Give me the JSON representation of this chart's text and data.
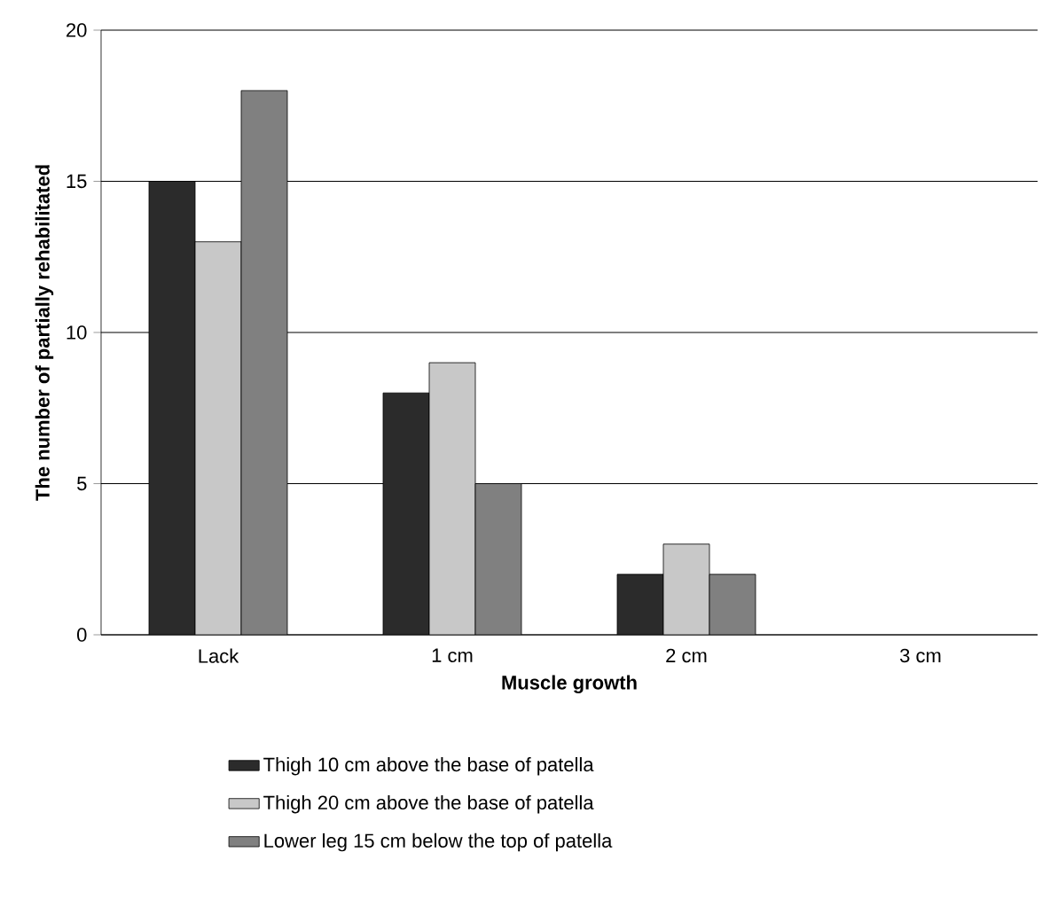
{
  "chart_data": {
    "type": "bar",
    "xlabel": "Muscle growth",
    "ylabel": "The number of partially rehabilitated",
    "categories": [
      "Lack",
      "1 cm",
      "2 cm",
      "3 cm"
    ],
    "series": [
      {
        "name": "Thigh 10 cm above the base of patella",
        "color": "#2b2b2b",
        "values": [
          15,
          8,
          2,
          null
        ]
      },
      {
        "name": "Thigh 20 cm above the base of patella",
        "color": "#c8c8c8",
        "values": [
          13,
          9,
          3,
          null
        ]
      },
      {
        "name": "Lower leg 15 cm below the top of patella",
        "color": "#808080",
        "values": [
          18,
          5,
          2,
          null
        ]
      }
    ],
    "ylim": [
      0,
      20
    ],
    "yticks": [
      0,
      5,
      10,
      15,
      20
    ],
    "grid": "y",
    "legend": "bottom"
  }
}
